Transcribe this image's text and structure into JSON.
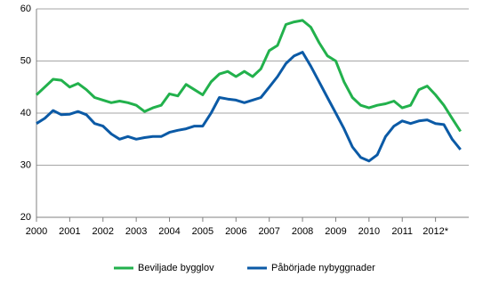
{
  "chart_data": {
    "type": "line",
    "x": [
      2000,
      2000.25,
      2000.5,
      2000.75,
      2001,
      2001.25,
      2001.5,
      2001.75,
      2002,
      2002.25,
      2002.5,
      2002.75,
      2003,
      2003.25,
      2003.5,
      2003.75,
      2004,
      2004.25,
      2004.5,
      2004.75,
      2005,
      2005.25,
      2005.5,
      2005.75,
      2006,
      2006.25,
      2006.5,
      2006.75,
      2007,
      2007.25,
      2007.5,
      2007.75,
      2008,
      2008.25,
      2008.5,
      2008.75,
      2009,
      2009.25,
      2009.5,
      2009.75,
      2010,
      2010.25,
      2010.5,
      2010.75,
      2011,
      2011.25,
      2011.5,
      2011.75,
      2012,
      2012.25,
      2012.5,
      2012.75
    ],
    "series": [
      {
        "name": "Beviljade bygglov",
        "color": "#22b14c",
        "values": [
          43.5,
          45,
          46.5,
          46.3,
          45,
          45.7,
          44.5,
          43,
          42.5,
          42,
          42.3,
          42,
          41.5,
          40.3,
          41,
          41.5,
          43.7,
          43.3,
          45.5,
          44.5,
          43.5,
          46,
          47.5,
          48,
          47,
          48,
          47,
          48.5,
          52,
          53,
          57,
          57.5,
          57.8,
          56.5,
          53.5,
          51,
          50,
          46,
          43,
          41.5,
          41,
          41.5,
          41.8,
          42.3,
          41,
          41.5,
          44.5,
          45.2,
          43.5,
          41.5,
          39,
          36.5
        ]
      },
      {
        "name": "Påbörjade nybyggnader",
        "color": "#0b5aa6",
        "values": [
          38,
          39,
          40.5,
          39.7,
          39.8,
          40.3,
          39.7,
          38,
          37.5,
          36,
          35,
          35.5,
          35,
          35.3,
          35.5,
          35.5,
          36.3,
          36.7,
          37,
          37.5,
          37.5,
          40,
          43,
          42.7,
          42.5,
          42,
          42.5,
          43,
          45,
          47,
          49.5,
          51,
          51.7,
          49,
          46,
          43,
          40,
          37,
          33.5,
          31.5,
          30.8,
          32,
          35.5,
          37.5,
          38.5,
          38,
          38.5,
          38.7,
          38,
          37.8,
          35,
          33
        ]
      }
    ],
    "xlim": [
      2000,
      2013
    ],
    "xticks": [
      2000,
      2001,
      2002,
      2003,
      2004,
      2005,
      2006,
      2007,
      2008,
      2009,
      2010,
      2011,
      {
        "value": 2012,
        "label": "2012*"
      }
    ],
    "ylim": [
      20,
      60
    ],
    "yticks": [
      20,
      30,
      40,
      50,
      60
    ],
    "grid": true,
    "legend": "bottom"
  }
}
